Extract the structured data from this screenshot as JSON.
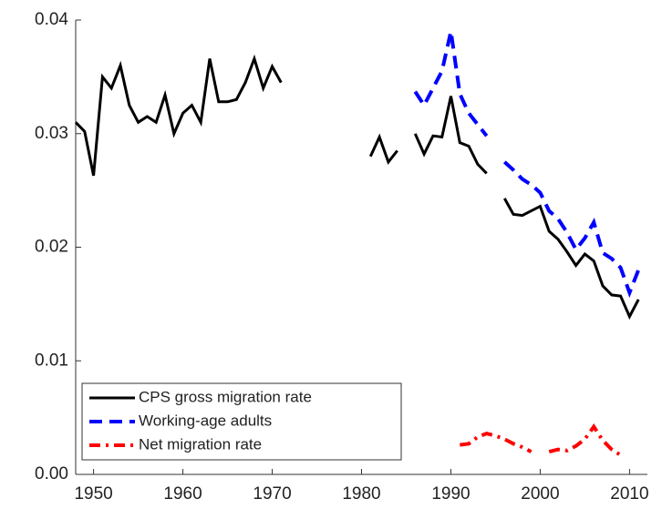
{
  "chart_data": {
    "type": "line",
    "x": [
      1948,
      1949,
      1950,
      1951,
      1952,
      1953,
      1954,
      1955,
      1956,
      1957,
      1958,
      1959,
      1960,
      1961,
      1962,
      1963,
      1964,
      1965,
      1966,
      1967,
      1968,
      1969,
      1970,
      1971,
      1972,
      1973,
      1974,
      1975,
      1976,
      1977,
      1978,
      1979,
      1980,
      1981,
      1982,
      1983,
      1984,
      1985,
      1986,
      1987,
      1988,
      1989,
      1990,
      1991,
      1992,
      1993,
      1994,
      1995,
      1996,
      1997,
      1998,
      1999,
      2000,
      2001,
      2002,
      2003,
      2004,
      2005,
      2006,
      2007,
      2008,
      2009,
      2010,
      2011
    ],
    "series": [
      {
        "name": "CPS gross migration rate",
        "color": "#000000",
        "style": "solid",
        "values": [
          0.031,
          0.0302,
          0.0263,
          0.035,
          0.034,
          0.036,
          0.0325,
          0.031,
          0.0315,
          0.031,
          0.0334,
          0.03,
          0.0318,
          0.0325,
          0.031,
          0.0366,
          0.0328,
          0.0328,
          0.033,
          0.0345,
          0.0366,
          0.034,
          0.0359,
          0.0345,
          null,
          null,
          null,
          null,
          null,
          null,
          null,
          null,
          null,
          0.028,
          0.0297,
          0.0275,
          0.0285,
          null,
          0.03,
          0.0282,
          0.0298,
          0.0297,
          0.0333,
          0.0292,
          0.0289,
          0.0273,
          0.0265,
          null,
          0.0243,
          0.0229,
          0.0228,
          0.0232,
          0.0236,
          0.0214,
          0.0207,
          0.0196,
          0.0184,
          0.0194,
          0.0188,
          0.0166,
          0.0158,
          0.0157,
          0.0139,
          0.0154
        ]
      },
      {
        "name": "Working-age adults",
        "color": "#0000ff",
        "style": "dashed",
        "values": [
          null,
          null,
          null,
          null,
          null,
          null,
          null,
          null,
          null,
          null,
          null,
          null,
          null,
          null,
          null,
          null,
          null,
          null,
          null,
          null,
          null,
          null,
          null,
          null,
          null,
          null,
          null,
          null,
          null,
          null,
          null,
          null,
          null,
          null,
          null,
          null,
          null,
          null,
          0.0337,
          0.0325,
          0.034,
          0.0355,
          0.039,
          0.0335,
          0.0318,
          0.0308,
          0.0298,
          null,
          0.0275,
          0.0268,
          0.026,
          0.0255,
          0.0248,
          0.0232,
          0.0225,
          0.0213,
          0.0198,
          0.0208,
          0.0222,
          0.0195,
          0.019,
          0.0182,
          0.016,
          0.018
        ]
      },
      {
        "name": "Net migration rate",
        "color": "#ff0000",
        "style": "dashdot",
        "values": [
          null,
          null,
          null,
          null,
          null,
          null,
          null,
          null,
          null,
          null,
          null,
          null,
          null,
          null,
          null,
          null,
          null,
          null,
          null,
          null,
          null,
          null,
          null,
          null,
          null,
          null,
          null,
          null,
          null,
          null,
          null,
          null,
          null,
          null,
          null,
          null,
          null,
          null,
          null,
          null,
          null,
          null,
          null,
          0.0026,
          0.0027,
          0.0033,
          0.0036,
          0.0034,
          0.0031,
          0.0027,
          0.0024,
          0.002,
          null,
          0.002,
          0.0022,
          0.0021,
          0.0025,
          0.0031,
          0.0042,
          0.003,
          0.0022,
          0.0017,
          null,
          null
        ]
      }
    ],
    "xlim": [
      1948,
      2012
    ],
    "xticks": [
      1950,
      1960,
      1970,
      1980,
      1990,
      2000,
      2010
    ],
    "ylim": [
      0,
      0.04
    ],
    "yticks": [
      {
        "value": 0,
        "label": "0.00"
      },
      0.01,
      0.02,
      0.03,
      0.04
    ],
    "legend": "lower left"
  }
}
